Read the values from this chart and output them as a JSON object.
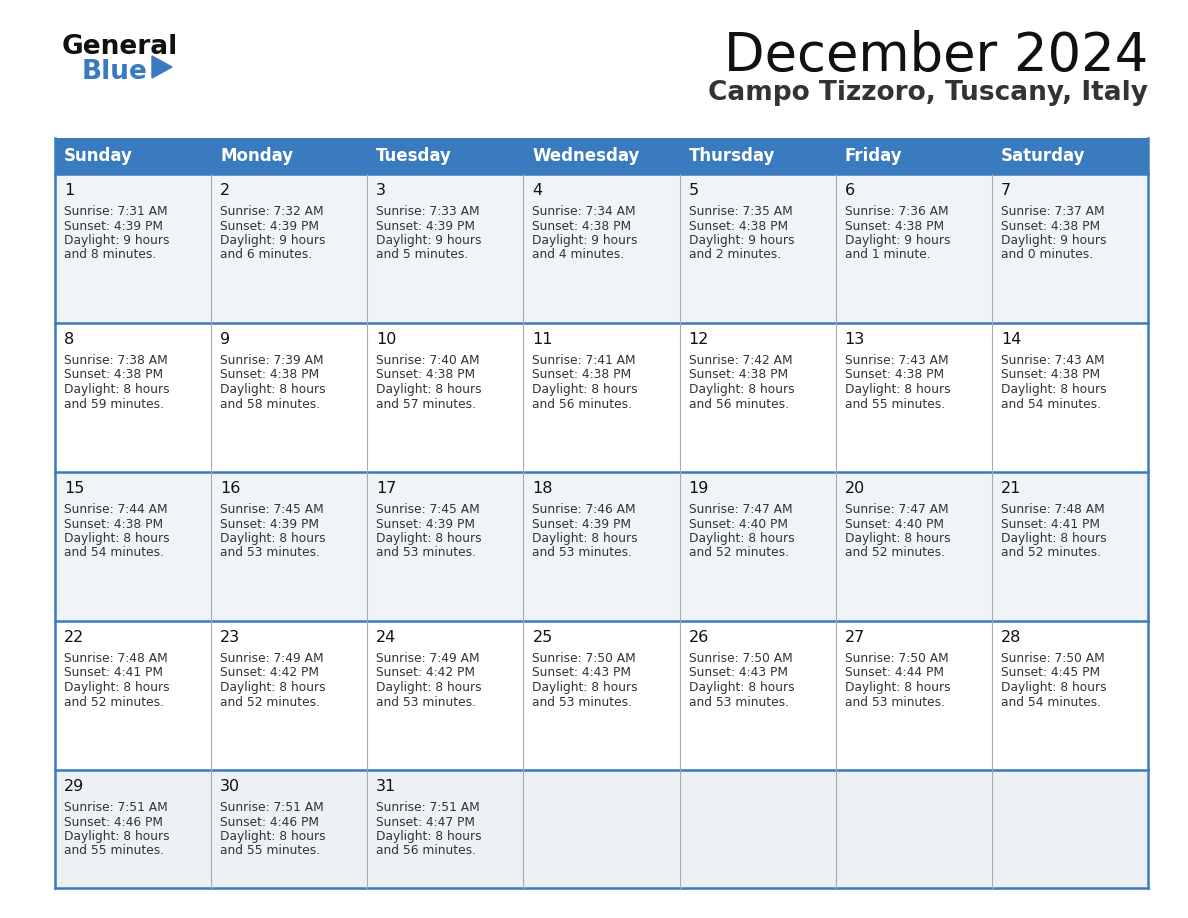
{
  "title": "December 2024",
  "subtitle": "Campo Tizzoro, Tuscany, Italy",
  "days_of_week": [
    "Sunday",
    "Monday",
    "Tuesday",
    "Wednesday",
    "Thursday",
    "Friday",
    "Saturday"
  ],
  "header_bg": "#3a7abf",
  "header_text": "#ffffff",
  "row_bg_odd": "#f0f4f8",
  "row_bg_even": "#ffffff",
  "last_row_bg": "#edf0f5",
  "cell_border_color": "#3a7abf",
  "cell_divider_color": "#aaaaaa",
  "text_color": "#333333",
  "day_num_color": "#111111",
  "title_color": "#111111",
  "subtitle_color": "#333333",
  "logo_general_color": "#111111",
  "logo_blue_color": "#3a7abf",
  "logo_triangle_color": "#3a7abf",
  "calendar_data": [
    [
      {
        "day": 1,
        "sunrise": "7:31 AM",
        "sunset": "4:39 PM",
        "daylight_l1": "9 hours",
        "daylight_l2": "and 8 minutes."
      },
      {
        "day": 2,
        "sunrise": "7:32 AM",
        "sunset": "4:39 PM",
        "daylight_l1": "9 hours",
        "daylight_l2": "and 6 minutes."
      },
      {
        "day": 3,
        "sunrise": "7:33 AM",
        "sunset": "4:39 PM",
        "daylight_l1": "9 hours",
        "daylight_l2": "and 5 minutes."
      },
      {
        "day": 4,
        "sunrise": "7:34 AM",
        "sunset": "4:38 PM",
        "daylight_l1": "9 hours",
        "daylight_l2": "and 4 minutes."
      },
      {
        "day": 5,
        "sunrise": "7:35 AM",
        "sunset": "4:38 PM",
        "daylight_l1": "9 hours",
        "daylight_l2": "and 2 minutes."
      },
      {
        "day": 6,
        "sunrise": "7:36 AM",
        "sunset": "4:38 PM",
        "daylight_l1": "9 hours",
        "daylight_l2": "and 1 minute."
      },
      {
        "day": 7,
        "sunrise": "7:37 AM",
        "sunset": "4:38 PM",
        "daylight_l1": "9 hours",
        "daylight_l2": "and 0 minutes."
      }
    ],
    [
      {
        "day": 8,
        "sunrise": "7:38 AM",
        "sunset": "4:38 PM",
        "daylight_l1": "8 hours",
        "daylight_l2": "and 59 minutes."
      },
      {
        "day": 9,
        "sunrise": "7:39 AM",
        "sunset": "4:38 PM",
        "daylight_l1": "8 hours",
        "daylight_l2": "and 58 minutes."
      },
      {
        "day": 10,
        "sunrise": "7:40 AM",
        "sunset": "4:38 PM",
        "daylight_l1": "8 hours",
        "daylight_l2": "and 57 minutes."
      },
      {
        "day": 11,
        "sunrise": "7:41 AM",
        "sunset": "4:38 PM",
        "daylight_l1": "8 hours",
        "daylight_l2": "and 56 minutes."
      },
      {
        "day": 12,
        "sunrise": "7:42 AM",
        "sunset": "4:38 PM",
        "daylight_l1": "8 hours",
        "daylight_l2": "and 56 minutes."
      },
      {
        "day": 13,
        "sunrise": "7:43 AM",
        "sunset": "4:38 PM",
        "daylight_l1": "8 hours",
        "daylight_l2": "and 55 minutes."
      },
      {
        "day": 14,
        "sunrise": "7:43 AM",
        "sunset": "4:38 PM",
        "daylight_l1": "8 hours",
        "daylight_l2": "and 54 minutes."
      }
    ],
    [
      {
        "day": 15,
        "sunrise": "7:44 AM",
        "sunset": "4:38 PM",
        "daylight_l1": "8 hours",
        "daylight_l2": "and 54 minutes."
      },
      {
        "day": 16,
        "sunrise": "7:45 AM",
        "sunset": "4:39 PM",
        "daylight_l1": "8 hours",
        "daylight_l2": "and 53 minutes."
      },
      {
        "day": 17,
        "sunrise": "7:45 AM",
        "sunset": "4:39 PM",
        "daylight_l1": "8 hours",
        "daylight_l2": "and 53 minutes."
      },
      {
        "day": 18,
        "sunrise": "7:46 AM",
        "sunset": "4:39 PM",
        "daylight_l1": "8 hours",
        "daylight_l2": "and 53 minutes."
      },
      {
        "day": 19,
        "sunrise": "7:47 AM",
        "sunset": "4:40 PM",
        "daylight_l1": "8 hours",
        "daylight_l2": "and 52 minutes."
      },
      {
        "day": 20,
        "sunrise": "7:47 AM",
        "sunset": "4:40 PM",
        "daylight_l1": "8 hours",
        "daylight_l2": "and 52 minutes."
      },
      {
        "day": 21,
        "sunrise": "7:48 AM",
        "sunset": "4:41 PM",
        "daylight_l1": "8 hours",
        "daylight_l2": "and 52 minutes."
      }
    ],
    [
      {
        "day": 22,
        "sunrise": "7:48 AM",
        "sunset": "4:41 PM",
        "daylight_l1": "8 hours",
        "daylight_l2": "and 52 minutes."
      },
      {
        "day": 23,
        "sunrise": "7:49 AM",
        "sunset": "4:42 PM",
        "daylight_l1": "8 hours",
        "daylight_l2": "and 52 minutes."
      },
      {
        "day": 24,
        "sunrise": "7:49 AM",
        "sunset": "4:42 PM",
        "daylight_l1": "8 hours",
        "daylight_l2": "and 53 minutes."
      },
      {
        "day": 25,
        "sunrise": "7:50 AM",
        "sunset": "4:43 PM",
        "daylight_l1": "8 hours",
        "daylight_l2": "and 53 minutes."
      },
      {
        "day": 26,
        "sunrise": "7:50 AM",
        "sunset": "4:43 PM",
        "daylight_l1": "8 hours",
        "daylight_l2": "and 53 minutes."
      },
      {
        "day": 27,
        "sunrise": "7:50 AM",
        "sunset": "4:44 PM",
        "daylight_l1": "8 hours",
        "daylight_l2": "and 53 minutes."
      },
      {
        "day": 28,
        "sunrise": "7:50 AM",
        "sunset": "4:45 PM",
        "daylight_l1": "8 hours",
        "daylight_l2": "and 54 minutes."
      }
    ],
    [
      {
        "day": 29,
        "sunrise": "7:51 AM",
        "sunset": "4:46 PM",
        "daylight_l1": "8 hours",
        "daylight_l2": "and 55 minutes."
      },
      {
        "day": 30,
        "sunrise": "7:51 AM",
        "sunset": "4:46 PM",
        "daylight_l1": "8 hours",
        "daylight_l2": "and 55 minutes."
      },
      {
        "day": 31,
        "sunrise": "7:51 AM",
        "sunset": "4:47 PM",
        "daylight_l1": "8 hours",
        "daylight_l2": "and 56 minutes."
      },
      null,
      null,
      null,
      null
    ]
  ]
}
